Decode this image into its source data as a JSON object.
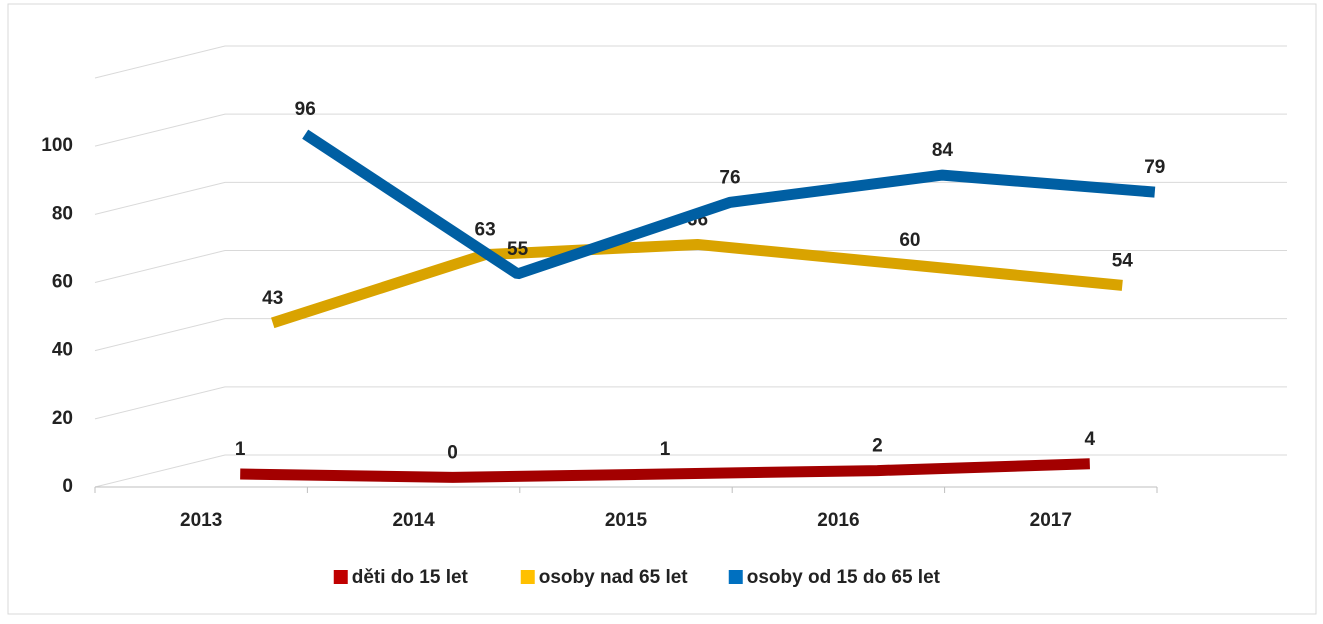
{
  "chart_data": {
    "type": "line",
    "categories": [
      "2013",
      "2014",
      "2015",
      "2016",
      "2017"
    ],
    "series": [
      {
        "name": "děti do 15 let",
        "color": "#c00000",
        "values": [
          1,
          0,
          1,
          2,
          4
        ]
      },
      {
        "name": "osoby nad 65 let",
        "color": "#ffc000",
        "values": [
          43,
          63,
          66,
          60,
          54
        ]
      },
      {
        "name": "osoby od 15 do 65 let",
        "color": "#0070c0",
        "values": [
          96,
          55,
          76,
          84,
          79
        ]
      }
    ],
    "ylim": [
      0,
      120
    ],
    "yticks": [
      0,
      20,
      40,
      60,
      80,
      100
    ],
    "grid": true,
    "legend": "bottom"
  }
}
